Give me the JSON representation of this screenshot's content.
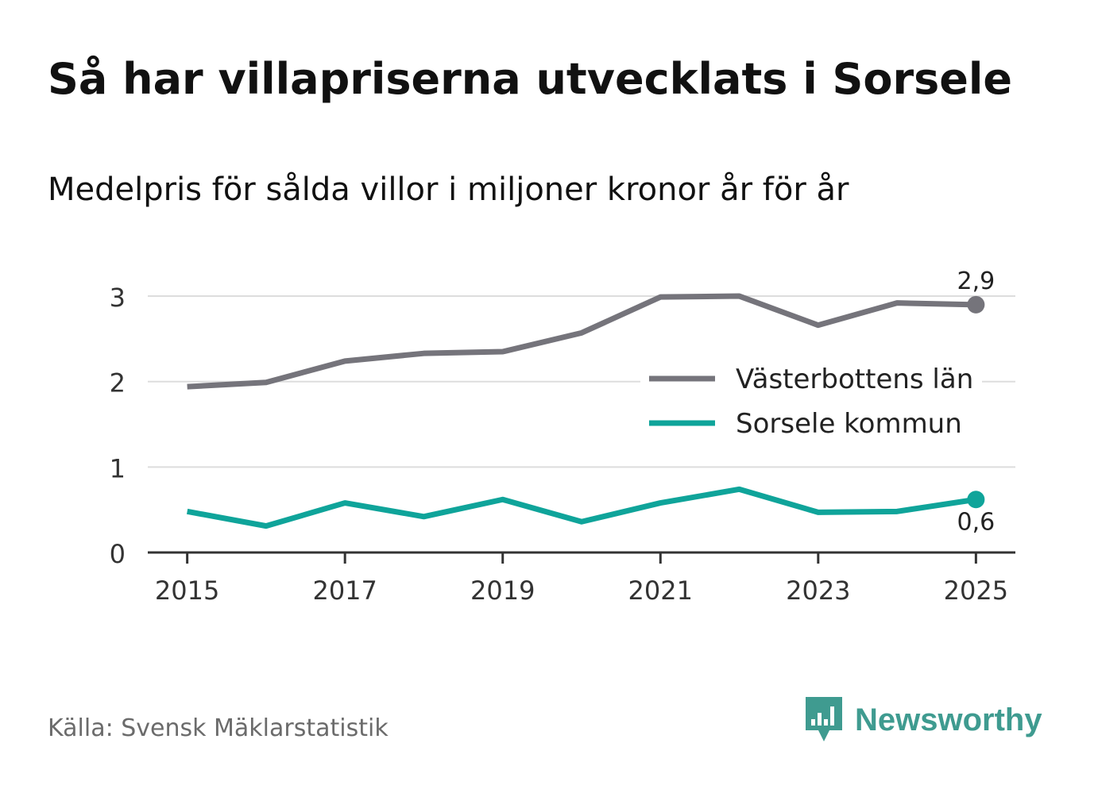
{
  "header": {
    "title": "Så har villapriserna utvecklats i Sorsele",
    "subtitle": "Medelpris för sålda villor i miljoner kronor år för år"
  },
  "footer": {
    "source": "Källa: Svensk Mäklarstatistik",
    "brand": "Newsworthy"
  },
  "colors": {
    "series_1": "#75747b",
    "series_2": "#0fa49a",
    "brand": "#3f9b90",
    "grid": "#dddddd",
    "axis": "#333333"
  },
  "chart_data": {
    "type": "line",
    "title": "Så har villapriserna utvecklats i Sorsele",
    "subtitle": "Medelpris för sålda villor i miljoner kronor år för år",
    "xlabel": "",
    "ylabel": "",
    "x": [
      2015,
      2016,
      2017,
      2018,
      2019,
      2020,
      2021,
      2022,
      2023,
      2024,
      2025
    ],
    "x_tick_labels": [
      "2015",
      "2017",
      "2019",
      "2021",
      "2023",
      "2025"
    ],
    "x_tick_values": [
      2015,
      2017,
      2019,
      2021,
      2023,
      2025
    ],
    "y_tick_labels": [
      "0",
      "1",
      "2",
      "3"
    ],
    "y_tick_values": [
      0,
      1,
      2,
      3
    ],
    "xlim": [
      2014.5,
      2025.5
    ],
    "ylim": [
      0,
      3.4
    ],
    "grid": true,
    "legend_position": "middle-right",
    "series": [
      {
        "name": "Västerbottens län",
        "values": [
          1.94,
          1.99,
          2.24,
          2.33,
          2.35,
          2.57,
          2.99,
          3.0,
          2.66,
          2.92,
          2.9
        ],
        "end_label": "2,9"
      },
      {
        "name": "Sorsele kommun",
        "values": [
          0.48,
          0.31,
          0.58,
          0.42,
          0.62,
          0.36,
          0.58,
          0.74,
          0.47,
          0.48,
          0.62
        ],
        "end_label": "0,6"
      }
    ]
  }
}
